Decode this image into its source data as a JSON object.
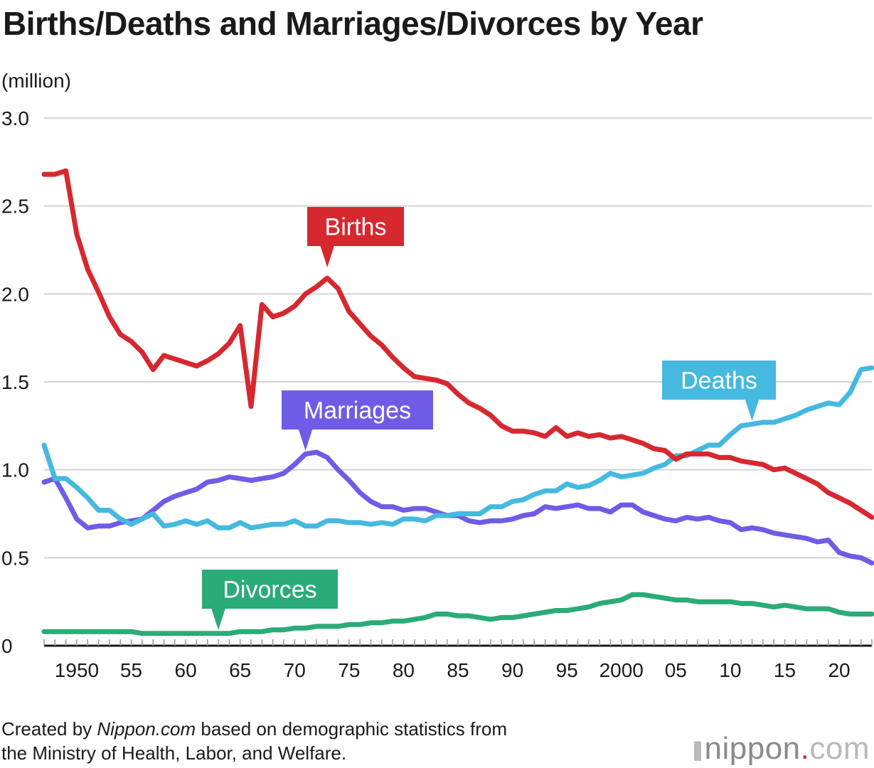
{
  "chart_data": {
    "type": "line",
    "title": "Births/Deaths and Marriages/Divorces by Year",
    "ylabel": "(million)",
    "ylim": [
      0,
      3.0
    ],
    "yticks": [
      {
        "value": 0,
        "label": "0"
      },
      {
        "value": 0.5,
        "label": "0.5"
      },
      {
        "value": 1.0,
        "label": "1.0"
      },
      {
        "value": 1.5,
        "label": "1.5"
      },
      {
        "value": 2.0,
        "label": "2.0"
      },
      {
        "value": 2.5,
        "label": "2.5"
      },
      {
        "value": 3.0,
        "label": "3.0"
      }
    ],
    "xlim": [
      1947,
      2023
    ],
    "xticks": [
      {
        "value": 1950,
        "label": "1950"
      },
      {
        "value": 1955,
        "label": "55"
      },
      {
        "value": 1960,
        "label": "60"
      },
      {
        "value": 1965,
        "label": "65"
      },
      {
        "value": 1970,
        "label": "70"
      },
      {
        "value": 1975,
        "label": "75"
      },
      {
        "value": 1980,
        "label": "80"
      },
      {
        "value": 1985,
        "label": "85"
      },
      {
        "value": 1990,
        "label": "90"
      },
      {
        "value": 1995,
        "label": "95"
      },
      {
        "value": 2000,
        "label": "2000"
      },
      {
        "value": 2005,
        "label": "05"
      },
      {
        "value": 2010,
        "label": "10"
      },
      {
        "value": 2015,
        "label": "15"
      },
      {
        "value": 2020,
        "label": "20"
      }
    ],
    "grid": true,
    "x": [
      1947,
      1948,
      1949,
      1950,
      1951,
      1952,
      1953,
      1954,
      1955,
      1956,
      1957,
      1958,
      1959,
      1960,
      1961,
      1962,
      1963,
      1964,
      1965,
      1966,
      1967,
      1968,
      1969,
      1970,
      1971,
      1972,
      1973,
      1974,
      1975,
      1976,
      1977,
      1978,
      1979,
      1980,
      1981,
      1982,
      1983,
      1984,
      1985,
      1986,
      1987,
      1988,
      1989,
      1990,
      1991,
      1992,
      1993,
      1994,
      1995,
      1996,
      1997,
      1998,
      1999,
      2000,
      2001,
      2002,
      2003,
      2004,
      2005,
      2006,
      2007,
      2008,
      2009,
      2010,
      2011,
      2012,
      2013,
      2014,
      2015,
      2016,
      2017,
      2018,
      2019,
      2020,
      2021,
      2022,
      2023
    ],
    "series": [
      {
        "name": "Births",
        "color": "#d7282f",
        "values": [
          2.68,
          2.68,
          2.7,
          2.34,
          2.14,
          2.01,
          1.87,
          1.77,
          1.73,
          1.67,
          1.57,
          1.65,
          1.63,
          1.61,
          1.59,
          1.62,
          1.66,
          1.72,
          1.82,
          1.36,
          1.94,
          1.87,
          1.89,
          1.93,
          2.0,
          2.04,
          2.09,
          2.03,
          1.9,
          1.83,
          1.76,
          1.71,
          1.64,
          1.58,
          1.53,
          1.52,
          1.51,
          1.49,
          1.43,
          1.38,
          1.35,
          1.31,
          1.25,
          1.22,
          1.22,
          1.21,
          1.19,
          1.24,
          1.19,
          1.21,
          1.19,
          1.2,
          1.18,
          1.19,
          1.17,
          1.15,
          1.12,
          1.11,
          1.06,
          1.09,
          1.09,
          1.09,
          1.07,
          1.07,
          1.05,
          1.04,
          1.03,
          1.0,
          1.01,
          0.98,
          0.95,
          0.92,
          0.87,
          0.84,
          0.81,
          0.77,
          0.73
        ]
      },
      {
        "name": "Deaths",
        "color": "#45b9df",
        "values": [
          1.14,
          0.95,
          0.95,
          0.9,
          0.84,
          0.77,
          0.77,
          0.72,
          0.69,
          0.72,
          0.75,
          0.68,
          0.69,
          0.71,
          0.69,
          0.71,
          0.67,
          0.67,
          0.7,
          0.67,
          0.68,
          0.69,
          0.69,
          0.71,
          0.68,
          0.68,
          0.71,
          0.71,
          0.7,
          0.7,
          0.69,
          0.7,
          0.69,
          0.72,
          0.72,
          0.71,
          0.74,
          0.74,
          0.75,
          0.75,
          0.75,
          0.79,
          0.79,
          0.82,
          0.83,
          0.86,
          0.88,
          0.88,
          0.92,
          0.9,
          0.91,
          0.94,
          0.98,
          0.96,
          0.97,
          0.98,
          1.01,
          1.03,
          1.08,
          1.08,
          1.11,
          1.14,
          1.14,
          1.2,
          1.25,
          1.26,
          1.27,
          1.27,
          1.29,
          1.31,
          1.34,
          1.36,
          1.38,
          1.37,
          1.44,
          1.57,
          1.58
        ]
      },
      {
        "name": "Marriages",
        "color": "#6f5ce6",
        "values": [
          0.93,
          0.95,
          0.84,
          0.72,
          0.67,
          0.68,
          0.68,
          0.7,
          0.71,
          0.72,
          0.77,
          0.82,
          0.85,
          0.87,
          0.89,
          0.93,
          0.94,
          0.96,
          0.95,
          0.94,
          0.95,
          0.96,
          0.98,
          1.03,
          1.09,
          1.1,
          1.07,
          1.0,
          0.94,
          0.87,
          0.82,
          0.79,
          0.79,
          0.77,
          0.78,
          0.78,
          0.76,
          0.74,
          0.74,
          0.71,
          0.7,
          0.71,
          0.71,
          0.72,
          0.74,
          0.75,
          0.79,
          0.78,
          0.79,
          0.8,
          0.78,
          0.78,
          0.76,
          0.8,
          0.8,
          0.76,
          0.74,
          0.72,
          0.71,
          0.73,
          0.72,
          0.73,
          0.71,
          0.7,
          0.66,
          0.67,
          0.66,
          0.64,
          0.63,
          0.62,
          0.61,
          0.59,
          0.6,
          0.53,
          0.51,
          0.5,
          0.47
        ]
      },
      {
        "name": "Divorces",
        "color": "#2aab78",
        "values": [
          0.08,
          0.08,
          0.08,
          0.08,
          0.08,
          0.08,
          0.08,
          0.08,
          0.08,
          0.07,
          0.07,
          0.07,
          0.07,
          0.07,
          0.07,
          0.07,
          0.07,
          0.07,
          0.08,
          0.08,
          0.08,
          0.09,
          0.09,
          0.1,
          0.1,
          0.11,
          0.11,
          0.11,
          0.12,
          0.12,
          0.13,
          0.13,
          0.14,
          0.14,
          0.15,
          0.16,
          0.18,
          0.18,
          0.17,
          0.17,
          0.16,
          0.15,
          0.16,
          0.16,
          0.17,
          0.18,
          0.19,
          0.2,
          0.2,
          0.21,
          0.22,
          0.24,
          0.25,
          0.26,
          0.29,
          0.29,
          0.28,
          0.27,
          0.26,
          0.26,
          0.25,
          0.25,
          0.25,
          0.25,
          0.24,
          0.24,
          0.23,
          0.22,
          0.23,
          0.22,
          0.21,
          0.21,
          0.21,
          0.19,
          0.18,
          0.18,
          0.18
        ]
      }
    ],
    "annotations": [
      {
        "text": "Births",
        "series": "Births",
        "point_year": 1973
      },
      {
        "text": "Deaths",
        "series": "Deaths",
        "point_year": 2012
      },
      {
        "text": "Marriages",
        "series": "Marriages",
        "point_year": 1971
      },
      {
        "text": "Divorces",
        "series": "Divorces",
        "point_year": 1963
      }
    ]
  },
  "footer": {
    "line1_prefix": "Created by ",
    "line1_brand": "Nippon.com",
    "line1_suffix": " based on demographic statistics from",
    "line2": "the Ministry of Health, Labor, and Welfare."
  },
  "brand": {
    "name": "nippon",
    "dot": ".",
    "tld": "com"
  }
}
